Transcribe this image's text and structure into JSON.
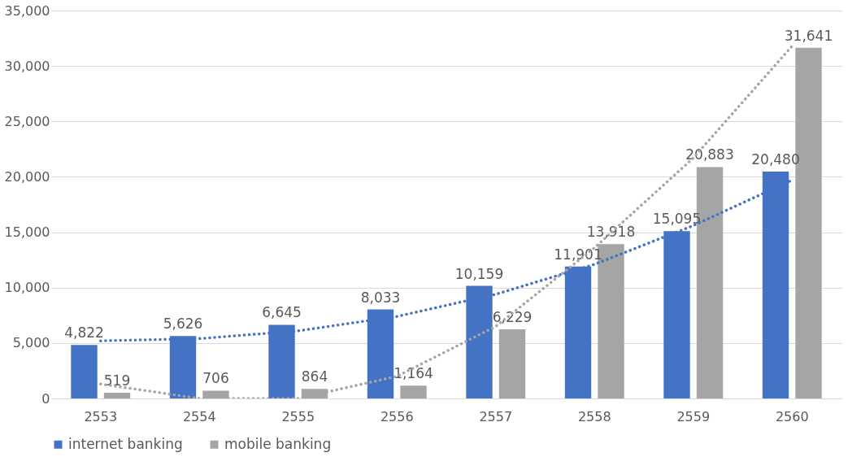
{
  "chart_data": {
    "type": "bar",
    "categories": [
      "2553",
      "2554",
      "2555",
      "2556",
      "2557",
      "2558",
      "2559",
      "2560"
    ],
    "series": [
      {
        "name": "internet banking",
        "color": "#4472c4",
        "values": [
          4822,
          5626,
          6645,
          8033,
          10159,
          11901,
          15095,
          20480
        ],
        "value_labels": [
          "4,822",
          "5,626",
          "6,645",
          "8,033",
          "10,159",
          "11,901",
          "15,095",
          "20,480"
        ]
      },
      {
        "name": "mobile banking",
        "color": "#a5a5a5",
        "values": [
          519,
          706,
          864,
          1164,
          6229,
          13918,
          20883,
          31641
        ],
        "value_labels": [
          "519",
          "706",
          "864",
          "1,164",
          "6,229",
          "13,918",
          "20,883",
          "31,641"
        ]
      },
      {
        "type": "line",
        "color": "#4472c4",
        "line_style": "dotted",
        "values": [
          5200,
          5400,
          6100,
          7400,
          9400,
          12100,
          15600,
          19700
        ]
      },
      {
        "type": "line",
        "color": "#a5a5a5",
        "line_style": "dotted",
        "values": [
          1300,
          0,
          0,
          2000,
          6500,
          13600,
          21700,
          31800
        ]
      }
    ],
    "ylim": [
      0,
      35000
    ],
    "yticks": [
      0,
      {
        "value": 5000,
        "label": "5,000"
      },
      {
        "value": 10000,
        "label": "10,000"
      },
      {
        "value": 15000,
        "label": "15,000"
      },
      {
        "value": 20000,
        "label": "20,000"
      },
      {
        "value": 25000,
        "label": "25,000"
      },
      {
        "value": 30000,
        "label": "30,000"
      },
      {
        "value": 35000,
        "label": "35,000"
      }
    ],
    "grid": "y",
    "legend": "bottom"
  }
}
